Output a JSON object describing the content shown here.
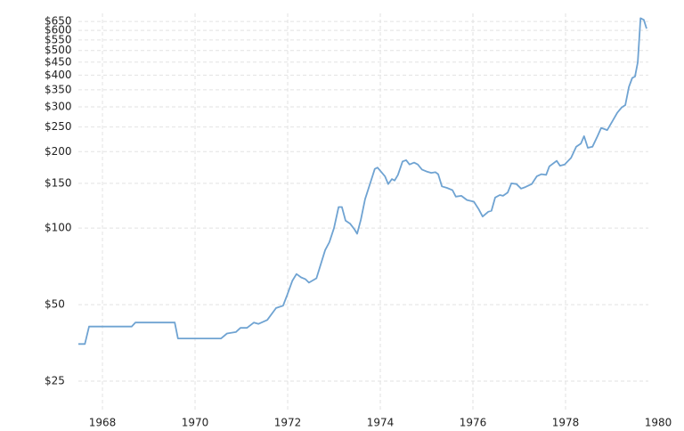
{
  "chart_data": {
    "type": "line",
    "x": [
      1967.48,
      1967.62,
      1967.71,
      1968.63,
      1968.71,
      1969.56,
      1969.63,
      1970.56,
      1970.69,
      1970.88,
      1970.98,
      1971.12,
      1971.27,
      1971.37,
      1971.56,
      1971.75,
      1971.9,
      1971.98,
      1972.1,
      1972.19,
      1972.29,
      1972.38,
      1972.46,
      1972.62,
      1972.81,
      1972.9,
      1973.0,
      1973.1,
      1973.17,
      1973.25,
      1973.35,
      1973.44,
      1973.5,
      1973.58,
      1973.67,
      1973.83,
      1973.88,
      1973.94,
      1974.1,
      1974.17,
      1974.25,
      1974.31,
      1974.38,
      1974.48,
      1974.56,
      1974.63,
      1974.73,
      1974.81,
      1974.9,
      1975.0,
      1975.1,
      1975.19,
      1975.25,
      1975.33,
      1975.44,
      1975.56,
      1975.63,
      1975.75,
      1975.87,
      1976.02,
      1976.12,
      1976.21,
      1976.33,
      1976.4,
      1976.48,
      1976.58,
      1976.65,
      1976.75,
      1976.83,
      1976.94,
      1977.04,
      1977.13,
      1977.27,
      1977.38,
      1977.48,
      1977.58,
      1977.65,
      1977.81,
      1977.88,
      1977.98,
      1978.12,
      1978.23,
      1978.33,
      1978.4,
      1978.48,
      1978.58,
      1978.69,
      1978.77,
      1978.9,
      1979.02,
      1979.12,
      1979.21,
      1979.29,
      1979.37,
      1979.44,
      1979.5,
      1979.56,
      1979.62,
      1979.69,
      1979.75
    ],
    "series": [
      {
        "color": "#6fa3d2",
        "values": [
          35,
          35,
          41,
          41,
          42.5,
          42.5,
          36.8,
          36.8,
          38.5,
          39,
          40.5,
          40.5,
          42.5,
          42,
          43.5,
          48.5,
          49.5,
          54,
          62,
          66,
          64,
          63,
          61,
          63.5,
          82,
          88,
          100,
          121,
          121,
          107,
          104,
          99,
          95,
          108,
          130,
          160,
          171,
          173,
          160,
          149,
          156,
          154,
          162,
          183,
          185,
          178,
          181,
          178,
          170,
          167,
          165,
          166,
          163,
          146,
          144,
          141,
          133,
          134,
          129,
          127,
          119,
          111,
          116,
          117,
          132,
          135,
          134,
          138,
          150,
          149,
          143,
          145,
          149,
          160,
          163,
          162,
          175,
          184,
          176,
          178,
          189,
          209,
          215,
          230,
          207,
          209,
          230,
          248,
          243,
          265,
          285,
          298,
          305,
          360,
          390,
          395,
          450,
          670,
          660,
          610
        ]
      }
    ],
    "xlim": [
      1967.48,
      1980
    ],
    "xticks": [
      1968,
      1970,
      1972,
      1974,
      1976,
      1978,
      1980
    ],
    "ylim": [
      19,
      700
    ],
    "log_y": true,
    "yticks": [
      {
        "value": 25,
        "label": "$25"
      },
      {
        "value": 50,
        "label": "$50"
      },
      {
        "value": 100,
        "label": "$100"
      },
      {
        "value": 150,
        "label": "$150"
      },
      {
        "value": 200,
        "label": "$200"
      },
      {
        "value": 250,
        "label": "$250"
      },
      {
        "value": 300,
        "label": "$300"
      },
      {
        "value": 350,
        "label": "$350"
      },
      {
        "value": 400,
        "label": "$400"
      },
      {
        "value": 450,
        "label": "$450"
      },
      {
        "value": 500,
        "label": "$500"
      },
      {
        "value": 550,
        "label": "$550"
      },
      {
        "value": 600,
        "label": "$600"
      },
      {
        "value": 650,
        "label": "$650"
      }
    ],
    "grid": true
  }
}
